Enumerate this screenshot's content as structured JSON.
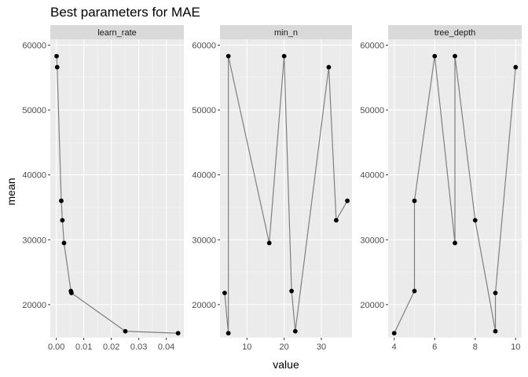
{
  "chart_data": {
    "type": "line",
    "title": "Best parameters for MAE",
    "xlabel": "value",
    "ylabel": "mean",
    "ylim": [
      14900,
      60900
    ],
    "yticks": [
      20000,
      30000,
      40000,
      50000,
      60000
    ],
    "ytick_labels": [
      "20000",
      "30000",
      "40000",
      "50000",
      "60000"
    ],
    "grid": true,
    "facets": [
      {
        "label": "learn_rate",
        "xlim": [
          -0.0022,
          0.0464
        ],
        "xticks": [
          0.0,
          0.01,
          0.02,
          0.03,
          0.04
        ],
        "xtick_labels": [
          "0.00",
          "0.01",
          "0.02",
          "0.03",
          "0.04"
        ],
        "points": [
          {
            "x": 0.0001,
            "y": 58300
          },
          {
            "x": 0.0003,
            "y": 56600
          },
          {
            "x": 0.0018,
            "y": 36000
          },
          {
            "x": 0.0022,
            "y": 33000
          },
          {
            "x": 0.0028,
            "y": 29500
          },
          {
            "x": 0.0053,
            "y": 22100
          },
          {
            "x": 0.0055,
            "y": 21800
          },
          {
            "x": 0.0251,
            "y": 15900
          },
          {
            "x": 0.0443,
            "y": 15600
          }
        ]
      },
      {
        "label": "min_n",
        "xlim": [
          2.75,
          38.25
        ],
        "xticks": [
          10,
          20,
          30
        ],
        "xtick_labels": [
          "10",
          "20",
          "30"
        ],
        "points": [
          {
            "x": 4,
            "y": 21800
          },
          {
            "x": 5,
            "y": 15600
          },
          {
            "x": 5,
            "y": 58300
          },
          {
            "x": 16,
            "y": 29500
          },
          {
            "x": 20,
            "y": 58300
          },
          {
            "x": 22,
            "y": 22100
          },
          {
            "x": 23,
            "y": 15900
          },
          {
            "x": 32,
            "y": 56600
          },
          {
            "x": 34,
            "y": 33000
          },
          {
            "x": 37,
            "y": 36000
          }
        ]
      },
      {
        "label": "tree_depth",
        "xlim": [
          3.7,
          10.3
        ],
        "xticks": [
          4,
          6,
          8,
          10
        ],
        "xtick_labels": [
          "4",
          "6",
          "8",
          "10"
        ],
        "points": [
          {
            "x": 4,
            "y": 15600
          },
          {
            "x": 5,
            "y": 22100
          },
          {
            "x": 5,
            "y": 36000
          },
          {
            "x": 6,
            "y": 58300
          },
          {
            "x": 7,
            "y": 29500
          },
          {
            "x": 7,
            "y": 58300
          },
          {
            "x": 8,
            "y": 33000
          },
          {
            "x": 9,
            "y": 15900
          },
          {
            "x": 9,
            "y": 21800
          },
          {
            "x": 10,
            "y": 56600
          }
        ]
      }
    ]
  }
}
